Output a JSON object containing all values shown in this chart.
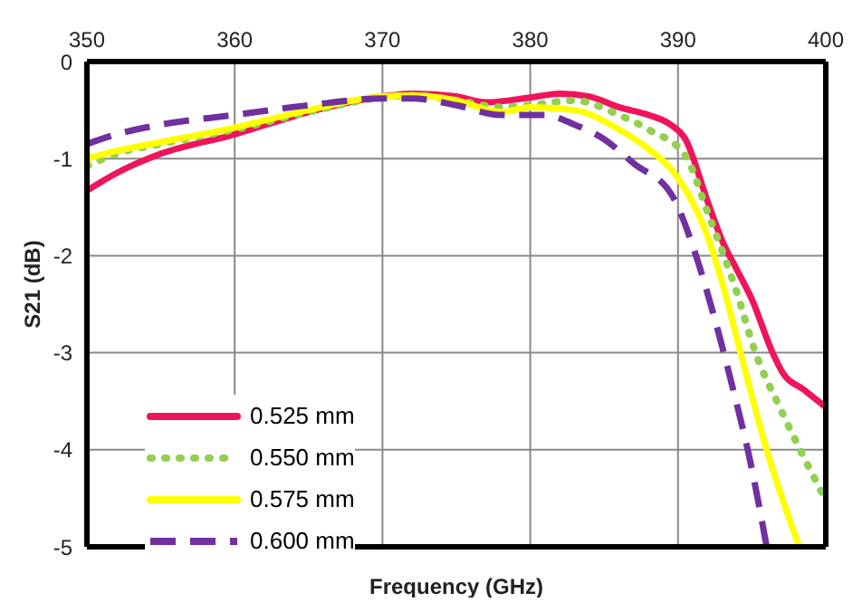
{
  "chart_data": {
    "type": "line",
    "xlabel": "Frequency (GHz)",
    "ylabel": "S21 (dB)",
    "xlim": [
      350,
      400
    ],
    "xticks": [
      350,
      360,
      370,
      380,
      390,
      400
    ],
    "ylim": [
      -5,
      0
    ],
    "yticks": [
      -5,
      -4,
      -3,
      -2,
      -1,
      0
    ],
    "grid": true,
    "legend": "bottom left",
    "marker": "none",
    "series": [
      {
        "name": "0.525 mm",
        "color": "#f0145a",
        "line_style": "solid",
        "x": [
          350,
          352,
          355,
          360,
          365,
          370,
          372,
          375,
          377,
          380,
          382,
          384,
          386,
          388,
          389.5,
          390.5,
          392,
          393,
          394,
          395,
          396.4,
          397.1,
          398.5,
          400
        ],
        "values": [
          -1.33,
          -1.15,
          -0.95,
          -0.75,
          -0.52,
          -0.36,
          -0.33,
          -0.36,
          -0.42,
          -0.37,
          -0.33,
          -0.36,
          -0.47,
          -0.55,
          -0.65,
          -0.8,
          -1.44,
          -1.85,
          -2.15,
          -2.45,
          -3.0,
          -3.21,
          -3.38,
          -3.56
        ]
      },
      {
        "name": "0.550 mm",
        "color": "#92d050",
        "line_style": "dotted",
        "x": [
          350,
          352,
          355,
          360,
          365,
          370,
          372,
          375,
          378,
          380,
          383,
          386,
          388,
          390.5,
          392,
          394,
          395.2,
          397,
          400
        ],
        "values": [
          -1.08,
          -0.95,
          -0.85,
          -0.7,
          -0.52,
          -0.37,
          -0.35,
          -0.4,
          -0.47,
          -0.45,
          -0.4,
          -0.55,
          -0.7,
          -0.97,
          -1.55,
          -2.39,
          -2.98,
          -3.6,
          -4.52
        ]
      },
      {
        "name": "0.575 mm",
        "color": "#ffff00",
        "line_style": "solid",
        "x": [
          350,
          352,
          355,
          360,
          365,
          370,
          372,
          375,
          378,
          380,
          383,
          386,
          388,
          390,
          392,
          393.2,
          394.2,
          396,
          398.2
        ],
        "values": [
          -1.0,
          -0.92,
          -0.83,
          -0.68,
          -0.5,
          -0.36,
          -0.35,
          -0.4,
          -0.52,
          -0.47,
          -0.5,
          -0.7,
          -0.9,
          -1.2,
          -1.8,
          -2.39,
          -2.98,
          -4.0,
          -5.0
        ]
      },
      {
        "name": "0.600 mm",
        "color": "#7030a0",
        "line_style": "dashed",
        "x": [
          350,
          352,
          355,
          360,
          365,
          370,
          372,
          375,
          378,
          381,
          383,
          385,
          387,
          389.6,
          391,
          392,
          393.6,
          395,
          396
        ],
        "values": [
          -0.85,
          -0.75,
          -0.65,
          -0.55,
          -0.45,
          -0.38,
          -0.38,
          -0.45,
          -0.55,
          -0.55,
          -0.65,
          -0.8,
          -1.05,
          -1.38,
          -1.9,
          -2.39,
          -3.3,
          -4.2,
          -5.0
        ]
      }
    ]
  }
}
